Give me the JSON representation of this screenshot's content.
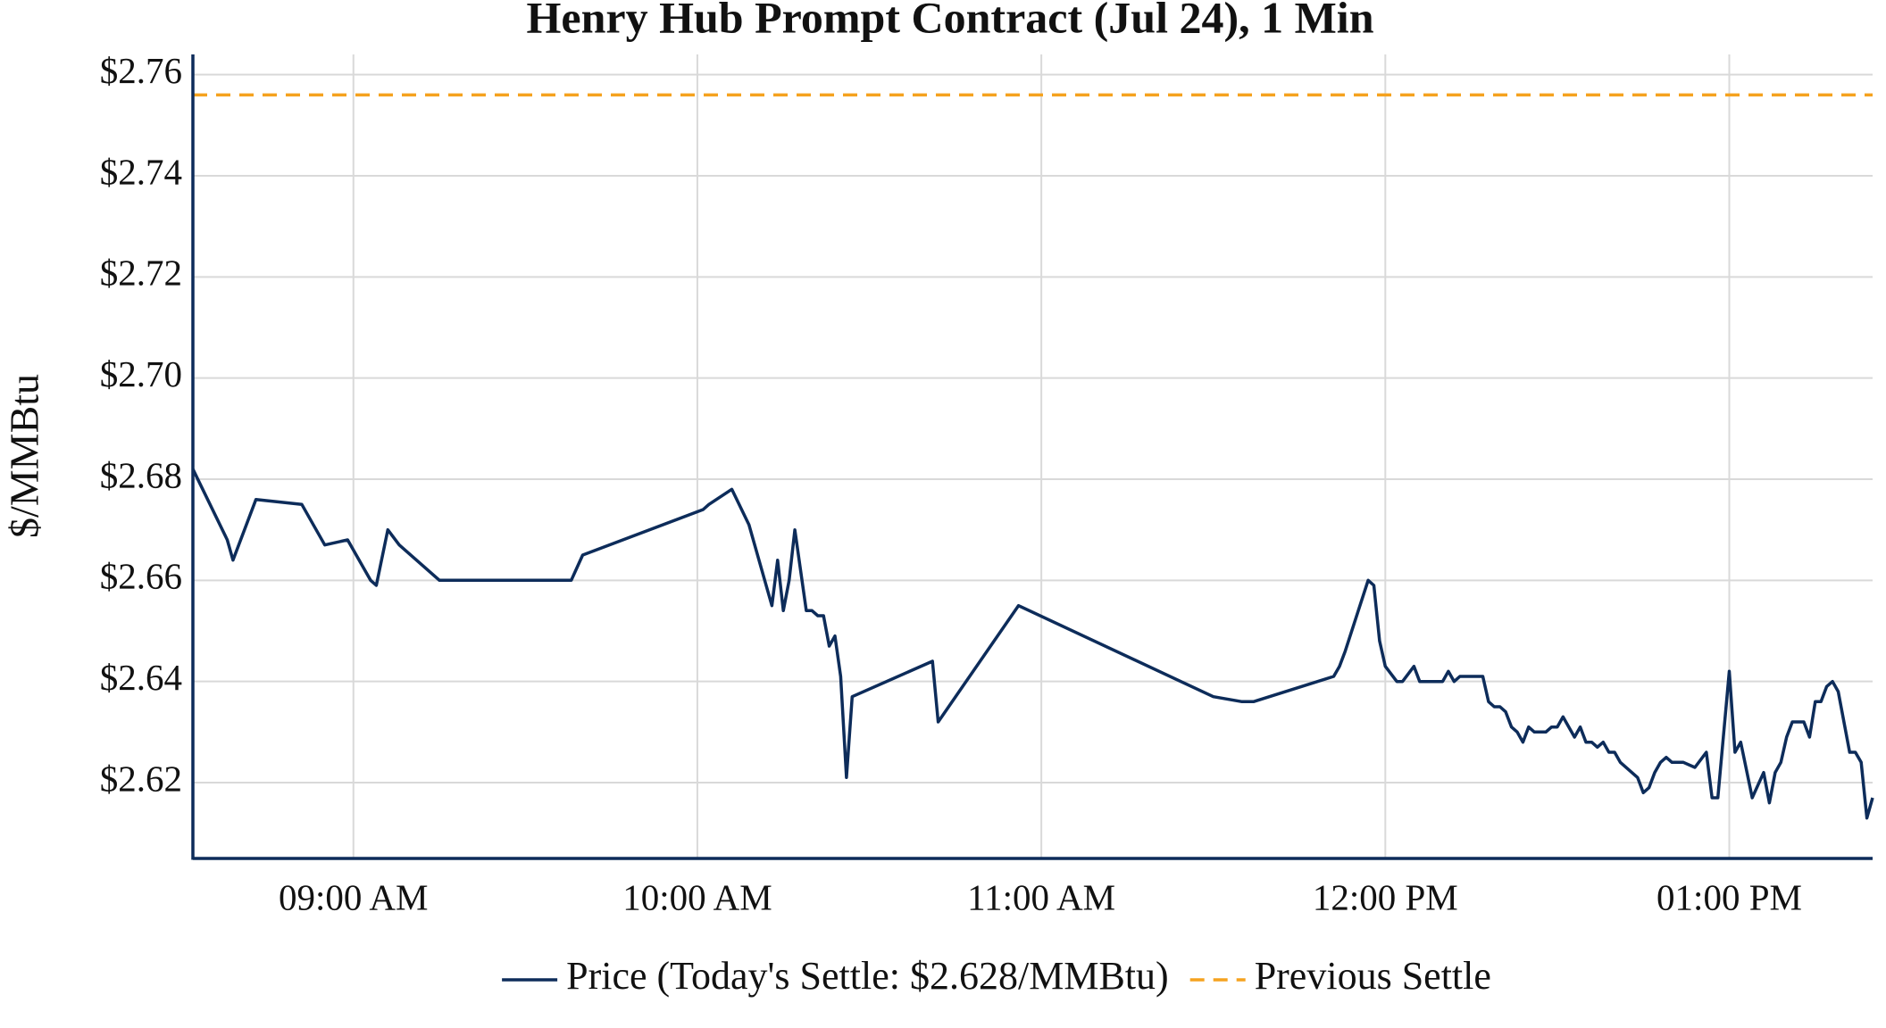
{
  "chart_data": {
    "type": "line",
    "title": "Henry Hub Prompt Contract (Jul 24), 1 Min",
    "y_label": "$/MMBtu",
    "x": [
      "08:32 AM",
      "08:38 AM",
      "08:39 AM",
      "08:43 AM",
      "08:51 AM",
      "08:55 AM",
      "08:59 AM",
      "09:03 AM",
      "09:04 AM",
      "09:06 AM",
      "09:08 AM",
      "09:15 AM",
      "09:38 AM",
      "09:40 AM",
      "10:01 AM",
      "10:02 AM",
      "10:06 AM",
      "10:09 AM",
      "10:13 AM",
      "10:14 AM",
      "10:15 AM",
      "10:16 AM",
      "10:17 AM",
      "10:19 AM",
      "10:20 AM",
      "10:21 AM",
      "10:22 AM",
      "10:23 AM",
      "10:24 AM",
      "10:25 AM",
      "10:26 AM",
      "10:27 AM",
      "10:41 AM",
      "10:42 AM",
      "10:56 AM",
      "11:30 AM",
      "11:35 AM",
      "11:37 AM",
      "11:51 AM",
      "11:52 AM",
      "11:53 AM",
      "11:57 AM",
      "11:58 AM",
      "11:59 AM",
      "12:00 PM",
      "12:02 PM",
      "12:03 PM",
      "12:05 PM",
      "12:06 PM",
      "12:10 PM",
      "12:11 PM",
      "12:12 PM",
      "12:13 PM",
      "12:17 PM",
      "12:18 PM",
      "12:19 PM",
      "12:20 PM",
      "12:21 PM",
      "12:22 PM",
      "12:23 PM",
      "12:24 PM",
      "12:25 PM",
      "12:26 PM",
      "12:28 PM",
      "12:29 PM",
      "12:30 PM",
      "12:31 PM",
      "12:32 PM",
      "12:33 PM",
      "12:34 PM",
      "12:35 PM",
      "12:36 PM",
      "12:37 PM",
      "12:38 PM",
      "12:39 PM",
      "12:40 PM",
      "12:41 PM",
      "12:43 PM",
      "12:44 PM",
      "12:45 PM",
      "12:46 PM",
      "12:47 PM",
      "12:48 PM",
      "12:49 PM",
      "12:50 PM",
      "12:52 PM",
      "12:54 PM",
      "12:56 PM",
      "12:57 PM",
      "12:58 PM",
      "01:00 PM",
      "01:01 PM",
      "01:02 PM",
      "01:04 PM",
      "01:06 PM",
      "01:07 PM",
      "01:08 PM",
      "01:09 PM",
      "01:10 PM",
      "01:11 PM",
      "01:13 PM",
      "01:14 PM",
      "01:15 PM",
      "01:16 PM",
      "01:17 PM",
      "01:18 PM",
      "01:19 PM",
      "01:21 PM",
      "01:22 PM",
      "01:23 PM",
      "01:24 PM",
      "01:25 PM"
    ],
    "series": [
      {
        "name": "Price (Today's Settle: $2.628/MMBtu)",
        "color": "#0d2c5a",
        "values": [
          2.682,
          2.668,
          2.664,
          2.676,
          2.675,
          2.667,
          2.668,
          2.66,
          2.659,
          2.67,
          2.667,
          2.66,
          2.66,
          2.665,
          2.674,
          2.675,
          2.678,
          2.671,
          2.655,
          2.664,
          2.654,
          2.66,
          2.67,
          2.654,
          2.654,
          2.653,
          2.653,
          2.647,
          2.649,
          2.641,
          2.621,
          2.637,
          2.644,
          2.632,
          2.655,
          2.637,
          2.636,
          2.636,
          2.641,
          2.643,
          2.646,
          2.66,
          2.659,
          2.648,
          2.643,
          2.64,
          2.64,
          2.643,
          2.64,
          2.64,
          2.642,
          2.64,
          2.641,
          2.641,
          2.636,
          2.635,
          2.635,
          2.634,
          2.631,
          2.63,
          2.628,
          2.631,
          2.63,
          2.63,
          2.631,
          2.631,
          2.633,
          2.631,
          2.629,
          2.631,
          2.628,
          2.628,
          2.627,
          2.628,
          2.626,
          2.626,
          2.624,
          2.622,
          2.621,
          2.618,
          2.619,
          2.622,
          2.624,
          2.625,
          2.624,
          2.624,
          2.623,
          2.626,
          2.617,
          2.617,
          2.642,
          2.626,
          2.628,
          2.617,
          2.622,
          2.616,
          2.622,
          2.624,
          2.629,
          2.632,
          2.632,
          2.629,
          2.636,
          2.636,
          2.639,
          2.64,
          2.638,
          2.626,
          2.626,
          2.624,
          2.613,
          2.617
        ]
      }
    ],
    "reference_lines": [
      {
        "name": "Previous Settle",
        "value": 2.756,
        "color": "#f5a21f",
        "dashed": true
      }
    ],
    "xlim": [
      "08:32 AM",
      "01:25 PM"
    ],
    "xticks": [
      "09:00 AM",
      "10:00 AM",
      "11:00 AM",
      "12:00 PM",
      "01:00 PM"
    ],
    "ylim": [
      2.605,
      2.764
    ],
    "yticks": [
      {
        "value": 2.62,
        "label": "$2.62"
      },
      {
        "value": 2.64,
        "label": "$2.64"
      },
      {
        "value": 2.66,
        "label": "$2.66"
      },
      {
        "value": 2.68,
        "label": "$2.68"
      },
      {
        "value": 2.7,
        "label": "$2.70"
      },
      {
        "value": 2.72,
        "label": "$2.72"
      },
      {
        "value": 2.74,
        "label": "$2.74"
      },
      {
        "value": 2.76,
        "label": "$2.76"
      }
    ],
    "grid": true,
    "legend": "bottom"
  }
}
